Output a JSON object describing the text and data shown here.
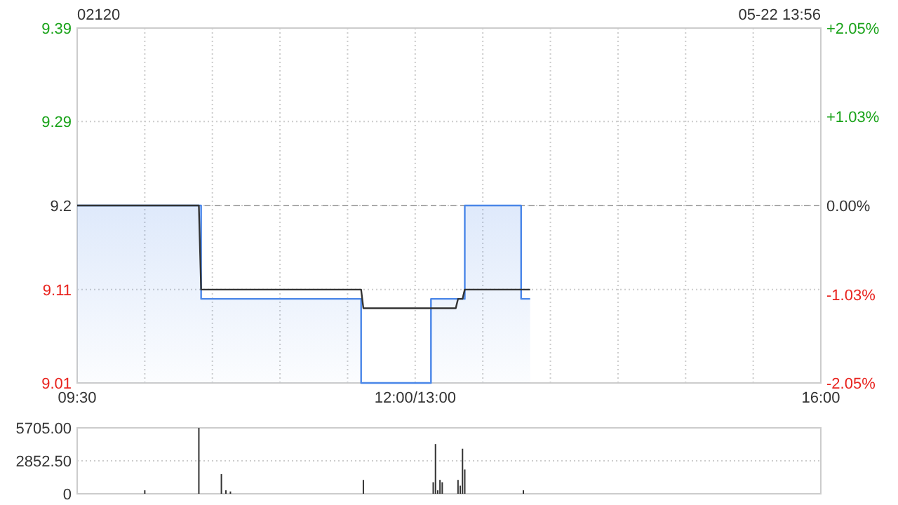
{
  "chart_data": [
    {
      "type": "step",
      "title": "02120",
      "subtitle": "05-22 13:56",
      "categories": [
        "09:30",
        null,
        null,
        null,
        null,
        null,
        null,
        null,
        null,
        null,
        null,
        null,
        null,
        null,
        null,
        null,
        null,
        null,
        null,
        null,
        null,
        null,
        null,
        null,
        null,
        null,
        null,
        null,
        null,
        null,
        null,
        null,
        null,
        null,
        null,
        null,
        null,
        null,
        null,
        null,
        null,
        null,
        null,
        null,
        null,
        null,
        null,
        null,
        null,
        null,
        null,
        null,
        null,
        null,
        null,
        null,
        null,
        null,
        null,
        null,
        null,
        null,
        null,
        null,
        null,
        null,
        null,
        null,
        null,
        null,
        null,
        null,
        null,
        null,
        null,
        null,
        null,
        null,
        null,
        null,
        null,
        null,
        null,
        null,
        null,
        null,
        null,
        null,
        null,
        null,
        null,
        null,
        null,
        null,
        null,
        null,
        null,
        null,
        null,
        null,
        null,
        null,
        null,
        null,
        null,
        null,
        null,
        null,
        null,
        null,
        null,
        null,
        null,
        null,
        null,
        null,
        null,
        null,
        null,
        null,
        null,
        null,
        null,
        null,
        null,
        null,
        null,
        null,
        null,
        null,
        null,
        null,
        null,
        null,
        null,
        null,
        null,
        null,
        null,
        null,
        null,
        null,
        null,
        null,
        null,
        null,
        null,
        null,
        null,
        null,
        "12:00/13:00",
        null,
        null,
        null,
        null,
        null,
        null,
        null,
        null,
        null,
        null,
        null,
        null,
        null,
        null,
        null,
        null,
        null,
        null,
        null,
        null,
        null,
        null,
        null,
        null,
        null,
        null,
        null,
        null,
        null,
        null,
        null,
        null,
        null,
        null,
        null,
        null,
        null,
        null,
        null,
        null,
        null,
        null,
        null,
        null,
        null,
        null,
        null,
        null,
        null,
        null,
        null,
        null,
        null,
        null,
        null,
        null,
        null,
        null,
        null,
        null,
        null,
        null,
        null,
        null,
        null,
        null,
        null,
        null,
        null,
        null,
        null,
        null,
        null,
        null,
        null,
        null,
        null,
        null,
        null,
        null,
        null,
        null,
        null,
        null,
        null,
        null,
        null,
        null,
        null,
        null,
        null,
        null,
        null,
        null,
        null,
        null,
        null,
        null,
        null,
        null,
        null,
        null,
        null,
        null,
        null,
        null,
        null,
        null,
        null,
        null,
        null,
        null,
        null,
        null,
        null,
        null,
        null,
        null,
        null,
        null,
        null,
        null,
        null,
        null,
        null,
        null,
        null,
        null,
        null,
        null,
        null,
        null,
        null,
        null,
        null,
        null,
        null,
        null,
        null,
        null,
        null,
        null,
        null,
        null,
        null,
        null,
        null,
        null,
        null,
        null,
        null,
        null,
        null,
        null,
        null,
        null,
        null,
        null,
        null,
        null,
        null,
        null,
        null,
        null,
        null,
        null,
        null,
        null,
        null,
        null,
        null,
        null,
        null,
        null,
        null,
        null,
        null,
        null,
        null,
        "16:00"
      ],
      "ylim": [
        9.01,
        9.39
      ],
      "yticks": [
        9.01,
        9.11,
        9.2,
        9.29,
        9.39
      ],
      "y2lim": [
        -2.05,
        2.05
      ],
      "y2ticks": [
        {
          "value": -2.05,
          "label": "-2.05%"
        },
        {
          "value": -1.03,
          "label": "-1.03%"
        },
        {
          "value": 0,
          "label": "0.00%"
        },
        {
          "value": 1.03,
          "label": "+1.03%"
        },
        {
          "value": 2.05,
          "label": "+2.05%"
        }
      ],
      "grid": true,
      "ref_lines": [
        {
          "axis": "y",
          "value": 9.2,
          "line_style": "dashed",
          "color": "#aaaaaa"
        }
      ],
      "series": [
        {
          "type": "area",
          "color": "#4a86e8",
          "values": [
            9.2,
            9.2,
            9.2,
            9.2,
            9.2,
            9.2,
            9.2,
            9.2,
            9.2,
            9.2,
            9.2,
            9.2,
            9.2,
            9.2,
            9.2,
            9.2,
            9.2,
            9.2,
            9.2,
            9.2,
            9.2,
            9.2,
            9.2,
            9.2,
            9.2,
            9.2,
            9.2,
            9.2,
            9.2,
            9.2,
            9.2,
            9.2,
            9.2,
            9.2,
            9.2,
            9.2,
            9.2,
            9.2,
            9.2,
            9.2,
            9.2,
            9.2,
            9.2,
            9.2,
            9.2,
            9.2,
            9.2,
            9.2,
            9.2,
            9.2,
            9.2,
            9.2,
            9.2,
            9.2,
            9.2,
            9.1,
            9.1,
            9.1,
            9.1,
            9.1,
            9.1,
            9.1,
            9.1,
            9.1,
            9.1,
            9.1,
            9.1,
            9.1,
            9.1,
            9.1,
            9.1,
            9.1,
            9.1,
            9.1,
            9.1,
            9.1,
            9.1,
            9.1,
            9.1,
            9.1,
            9.1,
            9.1,
            9.1,
            9.1,
            9.1,
            9.1,
            9.1,
            9.1,
            9.1,
            9.1,
            9.1,
            9.1,
            9.1,
            9.1,
            9.1,
            9.1,
            9.1,
            9.1,
            9.1,
            9.1,
            9.1,
            9.1,
            9.1,
            9.1,
            9.1,
            9.1,
            9.1,
            9.1,
            9.1,
            9.1,
            9.1,
            9.1,
            9.1,
            9.1,
            9.1,
            9.1,
            9.1,
            9.1,
            9.1,
            9.1,
            9.1,
            9.1,
            9.1,
            9.1,
            9.1,
            9.1,
            9.01,
            9.01,
            9.01,
            9.01,
            9.01,
            9.01,
            9.01,
            9.01,
            9.01,
            9.01,
            9.01,
            9.01,
            9.01,
            9.01,
            9.01,
            9.01,
            9.01,
            9.01,
            9.01,
            9.01,
            9.01,
            9.01,
            9.01,
            9.01,
            9.01,
            9.01,
            9.01,
            9.01,
            9.01,
            9.01,
            9.01,
            9.1,
            9.1,
            9.1,
            9.1,
            9.1,
            9.1,
            9.1,
            9.1,
            9.1,
            9.1,
            9.1,
            9.1,
            9.1,
            9.1,
            9.1,
            9.2,
            9.2,
            9.2,
            9.2,
            9.2,
            9.2,
            9.2,
            9.2,
            9.2,
            9.2,
            9.2,
            9.2,
            9.2,
            9.2,
            9.2,
            9.2,
            9.2,
            9.2,
            9.2,
            9.2,
            9.2,
            9.2,
            9.2,
            9.2,
            9.2,
            9.1,
            9.1,
            9.1,
            9.1,
            9.1,
            null,
            null,
            null,
            null,
            null,
            null,
            null,
            null,
            null,
            null,
            null,
            null,
            null,
            null,
            null,
            null,
            null,
            null,
            null,
            null,
            null,
            null,
            null,
            null,
            null,
            null,
            null,
            null,
            null,
            null,
            null,
            null,
            null,
            null,
            null,
            null,
            null,
            null,
            null,
            null,
            null,
            null,
            null,
            null,
            null,
            null,
            null,
            null,
            null,
            null,
            null,
            null,
            null,
            null,
            null,
            null,
            null,
            null,
            null,
            null,
            null,
            null,
            null,
            null,
            null,
            null,
            null,
            null,
            null,
            null,
            null,
            null,
            null,
            null,
            null,
            null,
            null,
            null,
            null,
            null,
            null,
            null,
            null,
            null,
            null,
            null,
            null,
            null,
            null,
            null,
            null,
            null,
            null,
            null,
            null,
            null,
            null,
            null,
            null,
            null,
            null,
            null,
            null,
            null,
            null,
            null,
            null,
            null,
            null,
            null,
            null,
            null,
            null,
            null,
            null,
            null,
            null,
            null,
            null,
            null,
            null,
            null,
            null,
            null,
            null,
            null,
            null,
            null,
            null
          ]
        },
        {
          "type": "line",
          "color": "#333333",
          "values": [
            9.2,
            9.2,
            9.2,
            9.2,
            9.2,
            9.2,
            9.2,
            9.2,
            9.2,
            9.2,
            9.2,
            9.2,
            9.2,
            9.2,
            9.2,
            9.2,
            9.2,
            9.2,
            9.2,
            9.2,
            9.2,
            9.2,
            9.2,
            9.2,
            9.2,
            9.2,
            9.2,
            9.2,
            9.2,
            9.2,
            9.2,
            9.2,
            9.2,
            9.2,
            9.2,
            9.2,
            9.2,
            9.2,
            9.2,
            9.2,
            9.2,
            9.2,
            9.2,
            9.2,
            9.2,
            9.2,
            9.2,
            9.2,
            9.2,
            9.2,
            9.2,
            9.2,
            9.2,
            9.2,
            9.2,
            9.11,
            9.11,
            9.11,
            9.11,
            9.11,
            9.11,
            9.11,
            9.11,
            9.11,
            9.11,
            9.11,
            9.11,
            9.11,
            9.11,
            9.11,
            9.11,
            9.11,
            9.11,
            9.11,
            9.11,
            9.11,
            9.11,
            9.11,
            9.11,
            9.11,
            9.11,
            9.11,
            9.11,
            9.11,
            9.11,
            9.11,
            9.11,
            9.11,
            9.11,
            9.11,
            9.11,
            9.11,
            9.11,
            9.11,
            9.11,
            9.11,
            9.11,
            9.11,
            9.11,
            9.11,
            9.11,
            9.11,
            9.11,
            9.11,
            9.11,
            9.11,
            9.11,
            9.11,
            9.11,
            9.11,
            9.11,
            9.11,
            9.11,
            9.11,
            9.11,
            9.11,
            9.11,
            9.11,
            9.11,
            9.11,
            9.11,
            9.11,
            9.11,
            9.11,
            9.11,
            9.11,
            9.11,
            9.09,
            9.09,
            9.09,
            9.09,
            9.09,
            9.09,
            9.09,
            9.09,
            9.09,
            9.09,
            9.09,
            9.09,
            9.09,
            9.09,
            9.09,
            9.09,
            9.09,
            9.09,
            9.09,
            9.09,
            9.09,
            9.09,
            9.09,
            9.09,
            9.09,
            9.09,
            9.09,
            9.09,
            9.09,
            9.09,
            9.09,
            9.09,
            9.09,
            9.09,
            9.09,
            9.09,
            9.09,
            9.09,
            9.09,
            9.09,
            9.09,
            9.09,
            9.1,
            9.1,
            9.1,
            9.11,
            9.11,
            9.11,
            9.11,
            9.11,
            9.11,
            9.11,
            9.11,
            9.11,
            9.11,
            9.11,
            9.11,
            9.11,
            9.11,
            9.11,
            9.11,
            9.11,
            9.11,
            9.11,
            9.11,
            9.11,
            9.11,
            9.11,
            9.11,
            9.11,
            9.11,
            9.11,
            9.11,
            9.11,
            9.11,
            null,
            null,
            null,
            null,
            null,
            null,
            null,
            null,
            null,
            null,
            null,
            null,
            null,
            null,
            null,
            null,
            null,
            null,
            null,
            null,
            null,
            null,
            null,
            null,
            null,
            null,
            null,
            null,
            null,
            null,
            null,
            null,
            null,
            null,
            null,
            null,
            null,
            null,
            null,
            null,
            null,
            null,
            null,
            null,
            null,
            null,
            null,
            null,
            null,
            null,
            null,
            null,
            null,
            null,
            null,
            null,
            null,
            null,
            null,
            null,
            null,
            null,
            null,
            null,
            null,
            null,
            null,
            null,
            null,
            null,
            null,
            null,
            null,
            null,
            null,
            null,
            null,
            null,
            null,
            null,
            null,
            null,
            null,
            null,
            null,
            null,
            null,
            null,
            null,
            null,
            null,
            null,
            null,
            null,
            null,
            null,
            null,
            null,
            null,
            null,
            null,
            null,
            null,
            null,
            null,
            null,
            null,
            null,
            null,
            null,
            null,
            null,
            null,
            null,
            null,
            null,
            null,
            null,
            null,
            null,
            null,
            null,
            null,
            null,
            null,
            null,
            null,
            null,
            null
          ]
        }
      ]
    },
    {
      "type": "bar",
      "ylim": [
        0,
        5705
      ],
      "yticks": [
        0,
        {
          "value": 2852.5,
          "label": "2852.50"
        },
        {
          "value": 5705,
          "label": "5705.00"
        }
      ],
      "grid": "y",
      "tick_labels": "y",
      "color": "#333333",
      "categories": [
        null,
        null,
        null,
        null,
        null,
        null,
        null,
        null,
        null,
        null,
        null,
        null,
        null,
        null,
        null,
        null,
        null,
        null,
        null,
        null,
        null,
        null,
        null,
        null,
        null,
        null,
        null,
        null,
        null,
        null,
        null,
        null,
        null,
        null,
        null,
        null,
        null,
        null,
        null,
        null,
        null,
        null,
        null,
        null,
        null,
        null,
        null,
        null,
        null,
        null,
        null,
        null,
        null,
        null,
        null,
        null,
        null,
        null,
        null,
        null,
        null,
        null,
        null,
        null,
        null,
        null,
        null,
        null,
        null,
        null,
        null,
        null,
        null,
        null,
        null,
        null,
        null,
        null,
        null,
        null,
        null,
        null,
        null,
        null,
        null,
        null,
        null,
        null,
        null,
        null,
        null,
        null,
        null,
        null,
        null,
        null,
        null,
        null,
        null,
        null,
        null,
        null,
        null,
        null,
        null,
        null,
        null,
        null,
        null,
        null,
        null,
        null,
        null,
        null,
        null,
        null,
        null,
        null,
        null,
        null,
        null,
        null,
        null,
        null,
        null,
        null,
        null,
        null,
        null,
        null,
        null,
        null,
        null,
        null,
        null,
        null,
        null,
        null,
        null,
        null,
        null,
        null,
        null,
        null,
        null,
        null,
        null,
        null,
        null,
        null,
        null,
        null,
        null,
        null,
        null,
        null,
        null,
        null,
        null,
        null,
        null,
        null,
        null,
        null,
        null,
        null,
        null,
        null,
        null,
        null,
        null,
        null,
        null,
        null,
        null,
        null,
        null,
        null,
        null,
        null,
        null,
        null,
        null,
        null,
        null,
        null,
        null,
        null,
        null,
        null,
        null,
        null,
        null,
        null,
        null,
        null,
        null,
        null,
        null,
        null,
        null,
        null,
        null,
        null,
        null,
        null,
        null,
        null,
        null,
        null,
        null,
        null,
        null,
        null,
        null,
        null,
        null,
        null,
        null,
        null,
        null,
        null,
        null,
        null,
        null,
        null,
        null,
        null,
        null,
        null,
        null,
        null,
        null,
        null,
        null,
        null,
        null,
        null,
        null,
        null,
        null,
        null,
        null,
        null,
        null,
        null,
        null,
        null,
        null,
        null,
        null,
        null,
        null,
        null,
        null,
        null,
        null,
        null,
        null,
        null,
        null,
        null,
        null,
        null,
        null,
        null,
        null,
        null,
        null,
        null,
        null,
        null,
        null,
        null,
        null,
        null,
        null,
        null,
        null,
        null,
        null,
        null,
        null,
        null,
        null,
        null,
        null,
        null,
        null,
        null,
        null,
        null,
        null,
        null,
        null,
        null,
        null,
        null,
        null,
        null,
        null,
        null,
        null,
        null,
        null,
        null,
        null,
        null,
        null,
        null,
        null,
        null,
        null,
        null,
        null,
        null,
        null,
        null,
        null,
        null,
        null,
        null,
        null,
        null,
        null,
        null,
        null,
        null,
        null,
        null,
        null
      ],
      "values": [
        null,
        null,
        null,
        null,
        null,
        null,
        null,
        null,
        null,
        null,
        null,
        null,
        null,
        null,
        null,
        null,
        null,
        null,
        null,
        null,
        null,
        null,
        null,
        null,
        null,
        null,
        null,
        null,
        null,
        null,
        300,
        null,
        null,
        null,
        null,
        null,
        null,
        null,
        null,
        null,
        null,
        null,
        null,
        null,
        null,
        null,
        null,
        null,
        null,
        null,
        null,
        null,
        null,
        null,
        5700,
        null,
        null,
        null,
        null,
        null,
        null,
        null,
        null,
        null,
        1700,
        null,
        300,
        null,
        200,
        null,
        null,
        null,
        null,
        null,
        null,
        null,
        null,
        null,
        null,
        null,
        null,
        null,
        null,
        null,
        null,
        null,
        null,
        null,
        null,
        null,
        null,
        null,
        null,
        null,
        null,
        null,
        null,
        null,
        null,
        null,
        null,
        null,
        null,
        null,
        null,
        null,
        null,
        null,
        null,
        null,
        null,
        null,
        null,
        null,
        null,
        null,
        null,
        null,
        null,
        null,
        null,
        null,
        null,
        null,
        null,
        null,
        null,
        1200,
        null,
        null,
        null,
        null,
        null,
        null,
        null,
        null,
        null,
        null,
        null,
        null,
        null,
        null,
        null,
        null,
        null,
        null,
        null,
        null,
        null,
        null,
        null,
        null,
        null,
        null,
        null,
        null,
        null,
        null,
        1000,
        4300,
        300,
        1200,
        1000,
        null,
        null,
        null,
        null,
        null,
        null,
        1200,
        700,
        3900,
        2100,
        null,
        null,
        null,
        null,
        null,
        null,
        null,
        null,
        null,
        null,
        null,
        null,
        null,
        null,
        null,
        null,
        null,
        null,
        null,
        null,
        null,
        null,
        null,
        null,
        null,
        300,
        null,
        null,
        null,
        null,
        null,
        null,
        null,
        null,
        null,
        null,
        null,
        null,
        null,
        null,
        null,
        null,
        null,
        null,
        null,
        null,
        null,
        null,
        null,
        null,
        null,
        null,
        null,
        null,
        null,
        null,
        null,
        null,
        null,
        null,
        null,
        null,
        null,
        null,
        null,
        null,
        null,
        null,
        null,
        null,
        null,
        null,
        null,
        null,
        null,
        null,
        null,
        null,
        null,
        null,
        null,
        null,
        null,
        null,
        null,
        null,
        null,
        null,
        null,
        null,
        null,
        null,
        null,
        null,
        null,
        null,
        null,
        null,
        null,
        null,
        null,
        null,
        null,
        null,
        null,
        null,
        null,
        null,
        null,
        null,
        null,
        null,
        null,
        null,
        null,
        null,
        null,
        null,
        null,
        null,
        null,
        null,
        null,
        null,
        null,
        null,
        null,
        null,
        null,
        null,
        null,
        null,
        null,
        null,
        null,
        null,
        null,
        null,
        null,
        null,
        null,
        null,
        null,
        null,
        null,
        null,
        null,
        null,
        null,
        null,
        null,
        null,
        null,
        null,
        null,
        null,
        null,
        null
      ]
    }
  ]
}
